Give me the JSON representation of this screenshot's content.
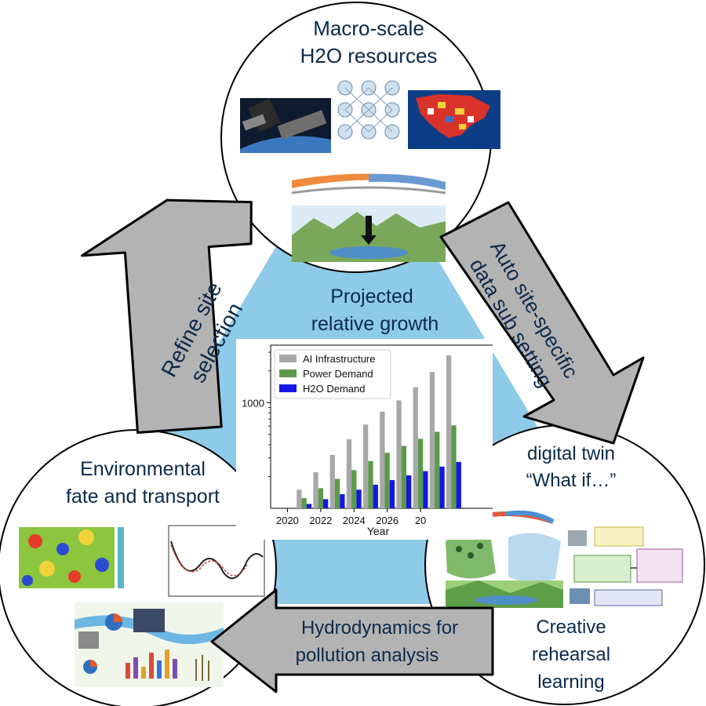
{
  "colors": {
    "triangle": "#8ecbe8",
    "arrow": "#b3b3b3",
    "circle_border": "#000000",
    "text": "#0b2a4a",
    "series_infra": "#a8a8a8",
    "series_power": "#5a9a4a",
    "series_h2o": "#1515e6"
  },
  "top_circle": {
    "line1": "Macro-scale",
    "line2": "H2O resources"
  },
  "left_circle": {
    "line1": "Environmental",
    "line2": "fate and transport"
  },
  "right_circle": {
    "top_line1": "digital twin",
    "top_line2": "“What if…”",
    "bottom_line1": "Creative",
    "bottom_line2": "rehearsal",
    "bottom_line3": "learning"
  },
  "arrows": {
    "left_line1": "Refine site",
    "left_line2": "selection",
    "right_line1": "Auto site-specific",
    "right_line2": "data sub setting",
    "bottom_line1": "Hydrodynamics for",
    "bottom_line2": "pollution analysis"
  },
  "center": {
    "title_line1": "Projected",
    "title_line2": "relative growth"
  },
  "chart_data": {
    "type": "bar",
    "xlabel": "Year",
    "ylabel": "",
    "yscale": "log",
    "ylim": [
      100,
      3500
    ],
    "ytick_labels": [
      "1000"
    ],
    "xtick_labels": [
      "2020",
      "2022",
      "2024",
      "2026",
      "20"
    ],
    "categories": [
      "2020",
      "2021",
      "2022",
      "2023",
      "2024",
      "2025",
      "2026",
      "2027",
      "2028",
      "2029",
      "2030"
    ],
    "legend_position": "upper-left",
    "series": [
      {
        "name": "AI Infrastructure",
        "values": [
          100,
          150,
          220,
          320,
          450,
          620,
          820,
          1050,
          1400,
          1950,
          2800
        ]
      },
      {
        "name": "Power Demand",
        "values": [
          100,
          125,
          155,
          190,
          230,
          280,
          335,
          390,
          455,
          530,
          610
        ]
      },
      {
        "name": "H2O Demand",
        "values": [
          100,
          110,
          122,
          136,
          150,
          167,
          185,
          205,
          225,
          248,
          275
        ]
      }
    ]
  }
}
